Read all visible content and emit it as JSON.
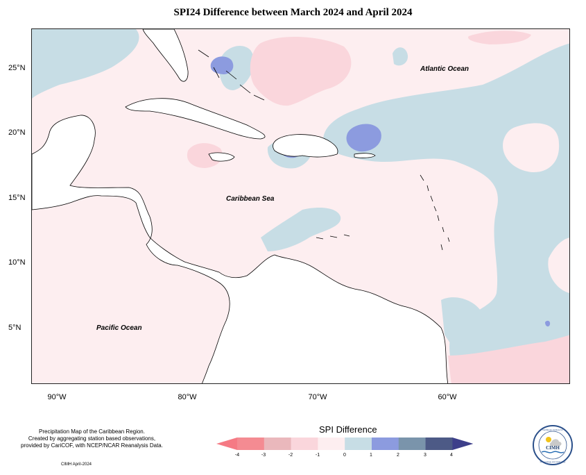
{
  "title": "SPI24 Difference between March 2024 and April 2024",
  "y_axis_labels": [
    "25°N",
    "20°N",
    "15°N",
    "10°N",
    "5°N"
  ],
  "x_axis_labels": [
    "90°W",
    "80°W",
    "70°W",
    "60°W"
  ],
  "ocean_labels": {
    "atlantic": "Atlantic Ocean",
    "caribbean": "Caribbean Sea",
    "pacific": "Pacific Ocean"
  },
  "caption": {
    "line1": "Precipitation Map of the Caribbean Region.",
    "line2": "Created by aggregating station based observations,",
    "line3": "provided by CariCOF, with NCEP/NCAR Reanalysis Data."
  },
  "credit": "CIMH April-2024",
  "legend": {
    "title": "SPI Difference",
    "ticks": [
      "-4",
      "-3",
      "-2",
      "-1",
      "0",
      "1",
      "2",
      "3",
      "4"
    ],
    "colors": [
      "#f48b92",
      "#eab8bc",
      "#fad6dc",
      "#fdeef0",
      "#c7dde5",
      "#8c9bdf",
      "#7a94ab",
      "#4d5a86"
    ],
    "low_arrow_color": "#f57a84",
    "high_arrow_color": "#3d3f8a"
  },
  "logo": {
    "text": "CIMH",
    "ring_top": "Caribbean Institute for",
    "ring_bottom": "Meteorology and Hydrology"
  }
}
